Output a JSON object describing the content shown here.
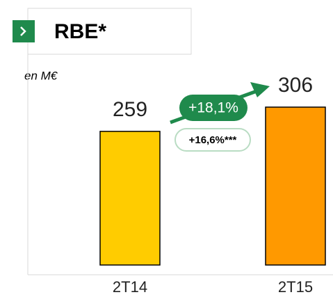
{
  "chart_data": {
    "type": "bar",
    "title": "RBE*",
    "subtitle": "en M€",
    "categories": [
      "2T14",
      "2T15"
    ],
    "values": [
      259,
      306
    ],
    "colors": [
      "#FFCC00",
      "#FF9900"
    ],
    "annotations": [
      "+18,1%",
      "+16,6%***"
    ]
  }
}
